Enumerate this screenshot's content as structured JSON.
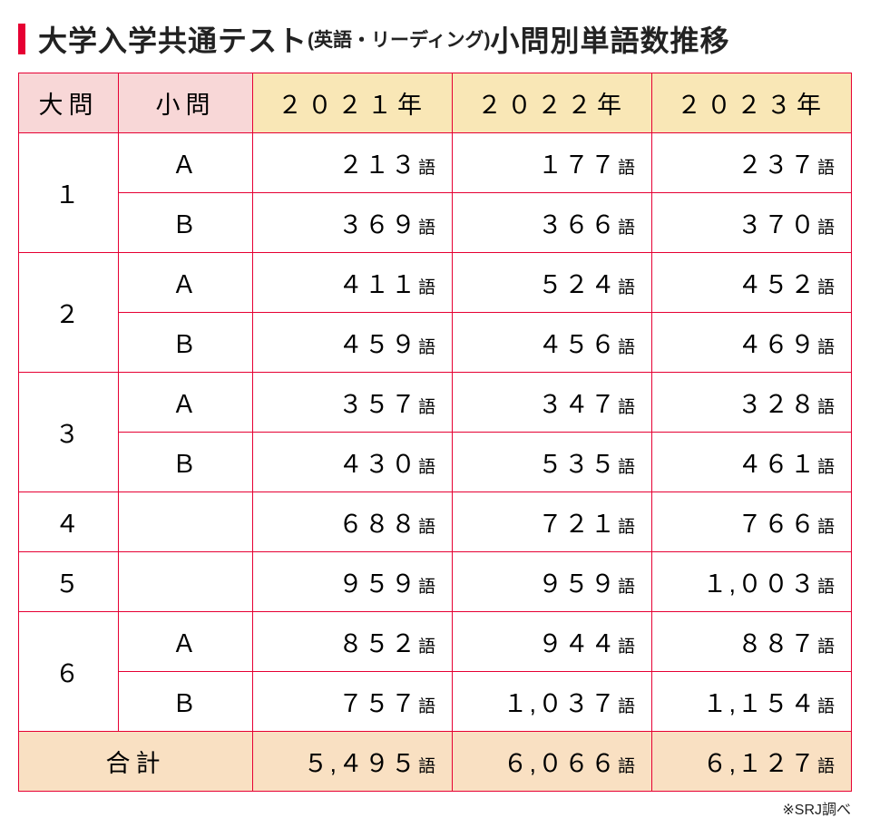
{
  "title": {
    "main": "大学入学共通テスト",
    "sub": "(英語・リーディング)",
    "tail": " 小問別単語数推移"
  },
  "colors": {
    "border": "#e60033",
    "header_pink": "#f8d7d7",
    "header_yellow": "#f9e7b6",
    "total_bg": "#f9e0c2",
    "accent_bar": "#e60033",
    "text": "#222222",
    "background": "#ffffff"
  },
  "table": {
    "columns": {
      "daimon": "大問",
      "shomon": "小問",
      "y2021": "２０２１年",
      "y2022": "２０２２年",
      "y2023": "２０２３年"
    },
    "unit": "語",
    "rows": [
      {
        "daimon": "１",
        "shomon": "Ａ",
        "y2021": "２１３",
        "y2022": "１７７",
        "y2023": "２３７"
      },
      {
        "daimon": "",
        "shomon": "Ｂ",
        "y2021": "３６９",
        "y2022": "３６６",
        "y2023": "３７０"
      },
      {
        "daimon": "２",
        "shomon": "Ａ",
        "y2021": "４１１",
        "y2022": "５２４",
        "y2023": "４５２"
      },
      {
        "daimon": "",
        "shomon": "Ｂ",
        "y2021": "４５９",
        "y2022": "４５６",
        "y2023": "４６９"
      },
      {
        "daimon": "３",
        "shomon": "Ａ",
        "y2021": "３５７",
        "y2022": "３４７",
        "y2023": "３２８"
      },
      {
        "daimon": "",
        "shomon": "Ｂ",
        "y2021": "４３０",
        "y2022": "５３５",
        "y2023": "４６１"
      },
      {
        "daimon": "４",
        "shomon": "",
        "y2021": "６８８",
        "y2022": "７２１",
        "y2023": "７６６"
      },
      {
        "daimon": "５",
        "shomon": "",
        "y2021": "９５９",
        "y2022": "９５９",
        "y2023": "１,００３"
      },
      {
        "daimon": "６",
        "shomon": "Ａ",
        "y2021": "８５２",
        "y2022": "９４４",
        "y2023": "８８７"
      },
      {
        "daimon": "",
        "shomon": "Ｂ",
        "y2021": "７５７",
        "y2022": "１,０３７",
        "y2023": "１,１５４"
      }
    ],
    "total": {
      "label": "合計",
      "y2021": "５,４９５",
      "y2022": "６,０６６",
      "y2023": "６,１２７"
    }
  },
  "footnote": "※SRJ調べ"
}
